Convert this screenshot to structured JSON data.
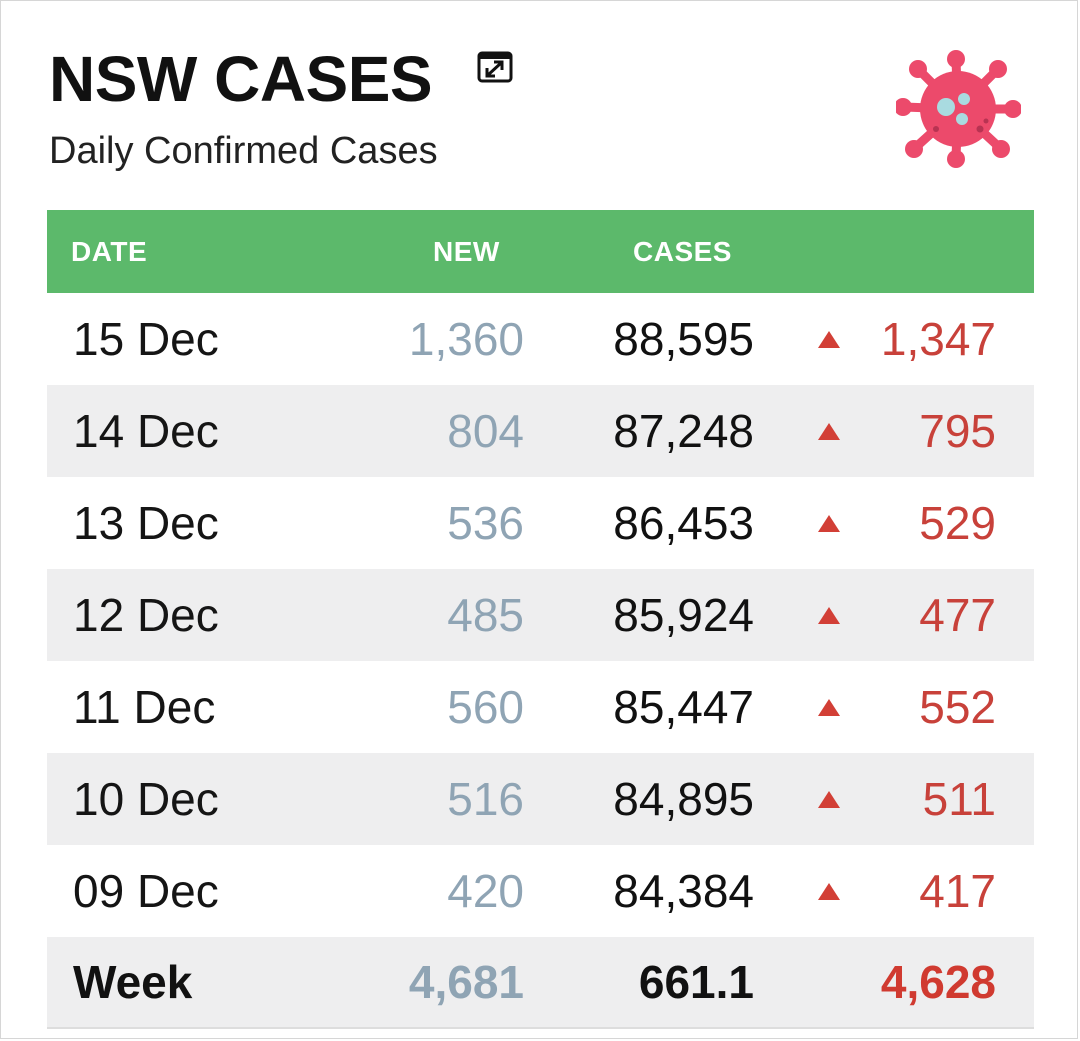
{
  "header": {
    "title": "NSW CASES",
    "subtitle": "Daily Confirmed Cases",
    "expand_icon": "expand-icon",
    "virus_icon": "virus-icon"
  },
  "colors": {
    "header_green": "#5cb96b",
    "new_blue_grey": "#8fa4b4",
    "increase_red": "#c8413a",
    "virus_pink": "#ec4a6b"
  },
  "table": {
    "columns": [
      "DATE",
      "NEW",
      "CASES"
    ],
    "rows": [
      {
        "date": "15 Dec",
        "new": "1,360",
        "cases": "88,595",
        "change": "1,347"
      },
      {
        "date": "14 Dec",
        "new": "804",
        "cases": "87,248",
        "change": "795"
      },
      {
        "date": "13 Dec",
        "new": "536",
        "cases": "86,453",
        "change": "529"
      },
      {
        "date": "12 Dec",
        "new": "485",
        "cases": "85,924",
        "change": "477"
      },
      {
        "date": "11 Dec",
        "new": "560",
        "cases": "85,447",
        "change": "552"
      },
      {
        "date": "10 Dec",
        "new": "516",
        "cases": "84,895",
        "change": "511"
      },
      {
        "date": "09 Dec",
        "new": "420",
        "cases": "84,384",
        "change": "417"
      }
    ],
    "total": {
      "label": "Week",
      "new": "4,681",
      "cases": "661.1",
      "change": "4,628"
    }
  }
}
